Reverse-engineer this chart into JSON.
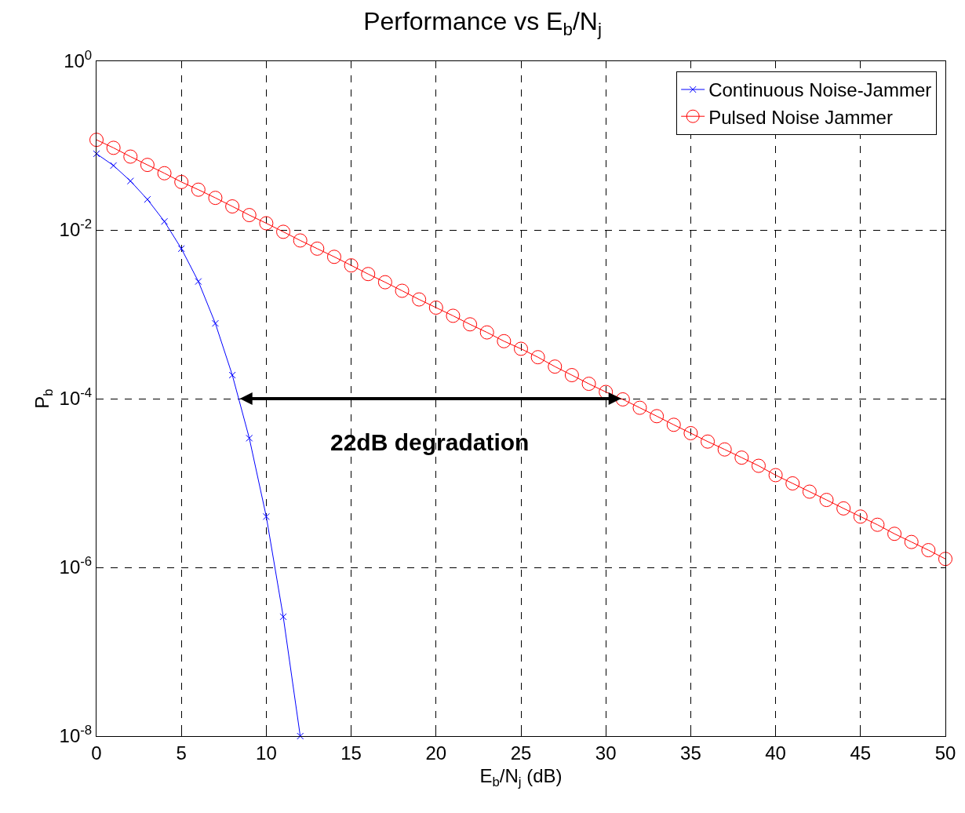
{
  "chart_data": {
    "type": "line",
    "title": "Performance vs E$_{b}$/N$_{j}$",
    "xlabel": "E$_{b}$/N$_{j}$ (dB)",
    "ylabel": "P$_{b}$",
    "log": "y",
    "grid": true,
    "legend": "top right",
    "line_style": "solid",
    "xlim": [
      0,
      50
    ],
    "xticks": [
      0,
      5,
      10,
      15,
      20,
      25,
      30,
      35,
      40,
      45,
      50
    ],
    "ylim": [
      1e-08,
      1
    ],
    "yticks": [
      {
        "value": 1,
        "label": "10$^{0}$"
      },
      {
        "value": 0.01,
        "label": "10$^{-2}$"
      },
      {
        "value": 0.0001,
        "label": "10$^{-4}$"
      },
      {
        "value": 1e-06,
        "label": "10$^{-6}$"
      },
      {
        "value": 1e-08,
        "label": "10$^{-8}$"
      }
    ],
    "series": [
      {
        "name": "Continuous Noise-Jammer",
        "color": "#0000ff",
        "marker": "cross",
        "x": [
          0,
          1,
          2,
          3,
          4,
          5,
          6,
          7,
          8,
          9,
          10,
          11,
          12
        ],
        "values": [
          0.08,
          0.058,
          0.038,
          0.023,
          0.0126,
          0.006,
          0.00245,
          0.00078,
          0.00019,
          3.4e-05,
          4e-06,
          2.6e-07,
          1e-08
        ]
      },
      {
        "name": "Pulsed Noise Jammer",
        "color": "#ff0000",
        "marker": "circle",
        "x": [
          0,
          1,
          2,
          3,
          4,
          5,
          6,
          7,
          8,
          9,
          10,
          11,
          12,
          13,
          14,
          15,
          16,
          17,
          18,
          19,
          20,
          21,
          22,
          23,
          24,
          25,
          26,
          27,
          28,
          29,
          30,
          31,
          32,
          33,
          34,
          35,
          36,
          37,
          38,
          39,
          40,
          41,
          42,
          43,
          44,
          45,
          46,
          47,
          48,
          49,
          50
        ],
        "values": [
          0.117,
          0.094,
          0.074,
          0.059,
          0.047,
          0.037,
          0.03,
          0.024,
          0.019,
          0.015,
          0.012,
          0.0095,
          0.0075,
          0.006,
          0.0048,
          0.0038,
          0.003,
          0.0024,
          0.0019,
          0.0015,
          0.0012,
          0.00096,
          0.00076,
          0.00061,
          0.00048,
          0.00039,
          0.00031,
          0.00024,
          0.00019,
          0.00015,
          0.00012,
          9.8e-05,
          7.8e-05,
          6.2e-05,
          4.9e-05,
          3.9e-05,
          3.1e-05,
          2.5e-05,
          2e-05,
          1.6e-05,
          1.24e-05,
          9.9e-06,
          7.9e-06,
          6.3e-06,
          5e-06,
          4e-06,
          3.2e-06,
          2.5e-06,
          2e-06,
          1.6e-06,
          1.26e-06
        ]
      }
    ],
    "annotations": [
      "22dB degradation"
    ]
  }
}
